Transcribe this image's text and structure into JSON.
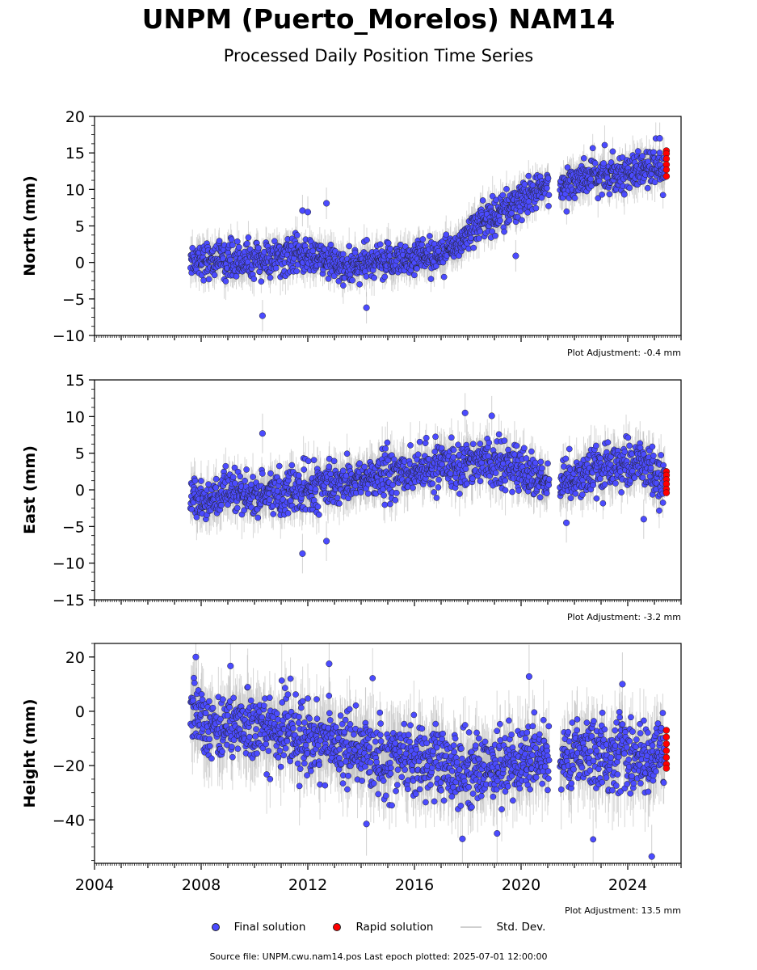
{
  "title": "UNPM (Puerto_Morelos) NAM14",
  "subtitle": "Processed Daily Position Time Series",
  "colors": {
    "final": "#4b4bff",
    "rapid": "#ff0000",
    "stddev": "#bdbdbd"
  },
  "legend": {
    "final": "Final solution",
    "rapid": "Rapid solution",
    "stddev": "Std. Dev."
  },
  "footer": "Source file: UNPM.cwu.nam14.pos  Last epoch plotted: 2025-07-01 12:00:00",
  "chart_data": [
    {
      "type": "scatter",
      "ylabel": "North (mm)",
      "adjustment": "Plot Adjustment: -0.4 mm",
      "xlim": [
        2004,
        2026
      ],
      "ylim": [
        -10,
        20
      ],
      "yticks": [
        -10,
        -5,
        0,
        5,
        10,
        15,
        20
      ],
      "ytick_labels": [
        "−10",
        "−5",
        "0",
        "5",
        "10",
        "15",
        "20"
      ],
      "trend": [
        [
          2007.6,
          0.5
        ],
        [
          2010,
          0.2
        ],
        [
          2012,
          1.0
        ],
        [
          2013.5,
          -0.8
        ],
        [
          2015,
          0.3
        ],
        [
          2017.5,
          1.5
        ],
        [
          2018,
          4.5
        ],
        [
          2019,
          6.5
        ],
        [
          2020,
          8.5
        ],
        [
          2021,
          10.2
        ],
        [
          2021.5,
          10.8
        ],
        [
          2023,
          12.0
        ],
        [
          2025.3,
          13.0
        ]
      ],
      "scatter_sd": 1.2,
      "outliers": [
        [
          2010.3,
          -7.3
        ],
        [
          2014.2,
          -6.2
        ],
        [
          2019.8,
          0.9
        ],
        [
          2012.7,
          8.1
        ],
        [
          2011.8,
          7.1
        ],
        [
          2012.0,
          6.9
        ],
        [
          2025.2,
          17.0
        ]
      ],
      "rapid": [
        [
          2025.45,
          15.3
        ],
        [
          2025.45,
          14.9
        ],
        [
          2025.45,
          14.2
        ],
        [
          2025.45,
          13.4
        ],
        [
          2025.45,
          12.7
        ],
        [
          2025.45,
          11.8
        ]
      ],
      "series": [
        {
          "name": "Final solution",
          "x_range": [
            2007.6,
            2025.4
          ]
        },
        {
          "name": "Rapid solution",
          "x_range": [
            2025.4,
            2025.5
          ]
        }
      ]
    },
    {
      "type": "scatter",
      "ylabel": "East (mm)",
      "adjustment": "Plot Adjustment: -3.2 mm",
      "xlim": [
        2004,
        2026
      ],
      "ylim": [
        -15,
        15
      ],
      "yticks": [
        -15,
        -10,
        -5,
        0,
        5,
        10,
        15
      ],
      "ytick_labels": [
        "−15",
        "−10",
        "−5",
        "0",
        "5",
        "10",
        "15"
      ],
      "trend": [
        [
          2007.6,
          -1.5
        ],
        [
          2009,
          -0.8
        ],
        [
          2011,
          -0.5
        ],
        [
          2013,
          0.8
        ],
        [
          2015,
          2.0
        ],
        [
          2017,
          3.0
        ],
        [
          2018,
          4.0
        ],
        [
          2019.5,
          3.8
        ],
        [
          2020.5,
          1.5
        ],
        [
          2021,
          0.5
        ],
        [
          2021.5,
          1.5
        ],
        [
          2023,
          2.5
        ],
        [
          2024.5,
          4.0
        ],
        [
          2025.3,
          1.0
        ]
      ],
      "scatter_sd": 1.5,
      "outliers": [
        [
          2010.3,
          7.7
        ],
        [
          2011.8,
          -8.7
        ],
        [
          2012.7,
          -7.0
        ],
        [
          2017.9,
          10.5
        ],
        [
          2018.9,
          10.1
        ],
        [
          2024.6,
          -4.0
        ],
        [
          2021.7,
          -4.5
        ]
      ],
      "rapid": [
        [
          2025.45,
          2.5
        ],
        [
          2025.45,
          2.0
        ],
        [
          2025.45,
          1.4
        ],
        [
          2025.45,
          0.8
        ],
        [
          2025.45,
          0.1
        ],
        [
          2025.45,
          -0.4
        ]
      ],
      "series": [
        {
          "name": "Final solution",
          "x_range": [
            2007.6,
            2025.4
          ]
        },
        {
          "name": "Rapid solution",
          "x_range": [
            2025.4,
            2025.5
          ]
        }
      ]
    },
    {
      "type": "scatter",
      "ylabel": "Height (mm)",
      "adjustment": "Plot Adjustment: 13.5 mm",
      "xlim": [
        2004,
        2026
      ],
      "ylim": [
        -56,
        25
      ],
      "yticks": [
        -40,
        -20,
        0,
        20
      ],
      "ytick_labels": [
        "−40",
        "−20",
        "0",
        "20"
      ],
      "xticks": [
        2004,
        2008,
        2012,
        2016,
        2020,
        2024
      ],
      "xtick_labels": [
        "2004",
        "2008",
        "2012",
        "2016",
        "2020",
        "2024"
      ],
      "trend": [
        [
          2007.6,
          2.0
        ],
        [
          2008.5,
          -5.0
        ],
        [
          2010,
          -6.0
        ],
        [
          2012,
          -10.0
        ],
        [
          2014,
          -15.0
        ],
        [
          2016,
          -18.0
        ],
        [
          2018,
          -22.0
        ],
        [
          2020,
          -18.0
        ],
        [
          2021,
          -15.0
        ],
        [
          2021.5,
          -16.0
        ],
        [
          2023,
          -16.0
        ],
        [
          2025.3,
          -17.0
        ]
      ],
      "scatter_sd": 6.5,
      "outliers": [
        [
          2007.8,
          20.0
        ],
        [
          2012.8,
          17.5
        ],
        [
          2009.1,
          16.7
        ],
        [
          2020.3,
          12.8
        ],
        [
          2023.8,
          10.0
        ],
        [
          2017.8,
          -47.0
        ],
        [
          2019.1,
          -45.0
        ],
        [
          2024.9,
          -53.5
        ],
        [
          2014.2,
          -41.5
        ]
      ],
      "rapid": [
        [
          2025.45,
          -7.0
        ],
        [
          2025.45,
          -9.5
        ],
        [
          2025.45,
          -12.0
        ],
        [
          2025.45,
          -14.5
        ],
        [
          2025.45,
          -17.0
        ],
        [
          2025.45,
          -19.5
        ],
        [
          2025.45,
          -21.0
        ]
      ],
      "series": [
        {
          "name": "Final solution",
          "x_range": [
            2007.6,
            2025.4
          ]
        },
        {
          "name": "Rapid solution",
          "x_range": [
            2025.4,
            2025.5
          ]
        }
      ]
    }
  ]
}
